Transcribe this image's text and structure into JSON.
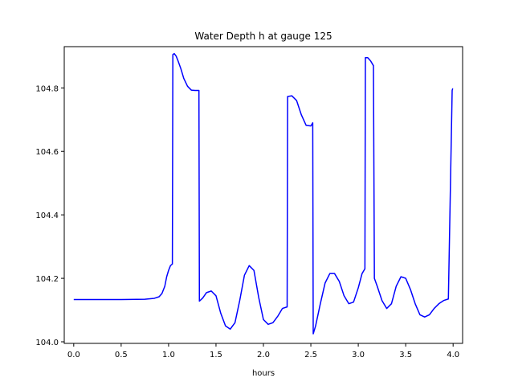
{
  "chart_data": {
    "type": "line",
    "title": "Water Depth h at gauge 125",
    "xlabel": "hours",
    "ylabel": "",
    "xlim": [
      -0.1,
      4.1
    ],
    "ylim": [
      103.995,
      104.93
    ],
    "grid": false,
    "xticks": [
      0.0,
      0.5,
      1.0,
      1.5,
      2.0,
      2.5,
      3.0,
      3.5,
      4.0
    ],
    "xtick_labels": [
      "0.0",
      "0.5",
      "1.0",
      "1.5",
      "2.0",
      "2.5",
      "3.0",
      "3.5",
      "4.0"
    ],
    "yticks": [
      104.0,
      104.2,
      104.4,
      104.6,
      104.8
    ],
    "ytick_labels": [
      "104.0",
      "104.2",
      "104.4",
      "104.6",
      "104.8"
    ],
    "series": [
      {
        "color": "#0000ff",
        "x": [
          0.0,
          0.2,
          0.5,
          0.75,
          0.85,
          0.9,
          0.93,
          0.96,
          0.98,
          1.0,
          1.02,
          1.04,
          1.045,
          1.06,
          1.08,
          1.1,
          1.13,
          1.16,
          1.2,
          1.24,
          1.28,
          1.32,
          1.325,
          1.36,
          1.4,
          1.45,
          1.5,
          1.55,
          1.6,
          1.65,
          1.7,
          1.75,
          1.8,
          1.85,
          1.9,
          1.95,
          2.0,
          2.05,
          2.1,
          2.15,
          2.2,
          2.25,
          2.255,
          2.3,
          2.35,
          2.4,
          2.45,
          2.5,
          2.52,
          2.525,
          2.55,
          2.6,
          2.65,
          2.7,
          2.75,
          2.8,
          2.85,
          2.9,
          2.95,
          3.0,
          3.04,
          3.07,
          3.075,
          3.1,
          3.13,
          3.16,
          3.17,
          3.2,
          3.25,
          3.3,
          3.35,
          3.4,
          3.45,
          3.5,
          3.55,
          3.6,
          3.65,
          3.7,
          3.75,
          3.8,
          3.85,
          3.9,
          3.95,
          3.99,
          3.995,
          4.0
        ],
        "y": [
          104.133,
          104.133,
          104.133,
          104.134,
          104.137,
          104.142,
          104.152,
          104.175,
          104.205,
          104.225,
          104.24,
          104.245,
          104.905,
          104.908,
          104.9,
          104.885,
          104.86,
          104.83,
          104.805,
          104.793,
          104.792,
          104.792,
          104.128,
          104.138,
          104.155,
          104.16,
          104.145,
          104.09,
          104.05,
          104.04,
          104.06,
          104.13,
          104.21,
          104.24,
          104.225,
          104.14,
          104.07,
          104.055,
          104.06,
          104.08,
          104.105,
          104.11,
          104.773,
          104.775,
          104.76,
          104.715,
          104.682,
          104.68,
          104.69,
          104.025,
          104.05,
          104.12,
          104.185,
          104.215,
          104.215,
          104.19,
          104.145,
          104.12,
          104.125,
          104.17,
          104.215,
          104.23,
          104.895,
          104.895,
          104.885,
          104.87,
          104.2,
          104.175,
          104.13,
          104.105,
          104.12,
          104.175,
          104.205,
          104.2,
          104.165,
          104.12,
          104.085,
          104.078,
          104.085,
          104.105,
          104.12,
          104.13,
          104.135,
          104.792,
          104.797,
          104.797
        ]
      }
    ]
  }
}
